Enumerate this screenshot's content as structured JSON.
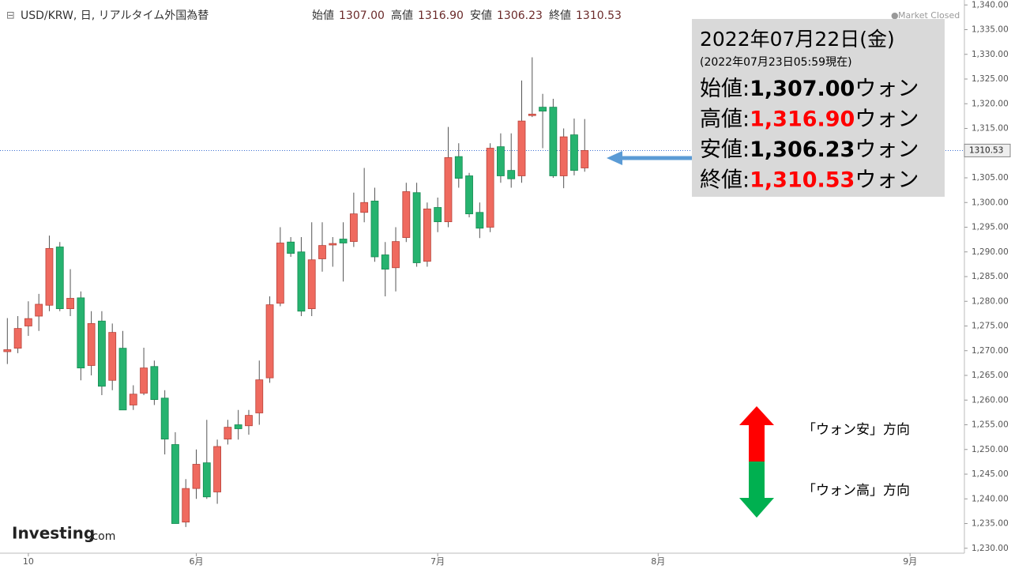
{
  "chart_data": {
    "type": "candlestick",
    "header": {
      "title": "USD/KRW, 日, リアルタイム外国為替",
      "fields": [
        {
          "label": "始値",
          "value": "1307.00"
        },
        {
          "label": "高値",
          "value": "1316.90"
        },
        {
          "label": "安値",
          "value": "1306.23"
        },
        {
          "label": "終値",
          "value": "1310.53"
        }
      ],
      "status": "Market Closed"
    },
    "logo": "Investing",
    "logo_suffix": ".com",
    "open": [
      1269.8,
      1270.5,
      1275,
      1277,
      1279.2,
      1291,
      1278.5,
      1280.7,
      1267,
      1276,
      1264,
      1270.5,
      1259,
      1261.4,
      1266.8,
      1260.4,
      1251,
      1235.3,
      1242.1,
      1247.3,
      1241.4,
      1252.1,
      1255,
      1254.8,
      1257.4,
      1264.5,
      1279.6,
      1292,
      1290,
      1278.5,
      1288.6,
      1291.4,
      1292.6,
      1292.1,
      1298,
      1300.3,
      1289.4,
      1286.8,
      1292.9,
      1302,
      1288.1,
      1299,
      1296.1,
      1309.3,
      1305.4,
      1298,
      1295,
      1311.3,
      1306.5,
      1305.4,
      1317.6,
      1319.3,
      1319.3,
      1305.4,
      1313.7,
      1307
    ],
    "high": [
      1276.6,
      1277,
      1280,
      1281.5,
      1293.3,
      1292,
      1286.5,
      1282,
      1278,
      1278,
      1275.5,
      1274,
      1263,
      1270.6,
      1268,
      1262,
      1253.5,
      1244,
      1250,
      1256,
      1252,
      1256,
      1258,
      1258,
      1268,
      1281,
      1295,
      1293,
      1293,
      1296,
      1296,
      1293,
      1296,
      1302,
      1307,
      1303,
      1292,
      1295,
      1304,
      1304,
      1300,
      1301,
      1315.3,
      1312,
      1306,
      1300,
      1312,
      1314,
      1314,
      1324.7,
      1329.4,
      1322,
      1321,
      1315,
      1317,
      1316.9
    ],
    "low": [
      1267.3,
      1269.5,
      1273,
      1274,
      1278,
      1278,
      1277,
      1264,
      1265,
      1261,
      1262,
      1258,
      1258,
      1261,
      1259,
      1249,
      1235,
      1234.3,
      1240,
      1240,
      1239,
      1251,
      1252,
      1253,
      1255,
      1263.5,
      1279,
      1289,
      1277,
      1277,
      1286,
      1287,
      1284,
      1291,
      1296,
      1288,
      1281,
      1282,
      1292,
      1287,
      1287,
      1294,
      1295,
      1303,
      1297,
      1292.8,
      1294,
      1304,
      1303,
      1304,
      1317.3,
      1311,
      1305,
      1302.9,
      1305.5,
      1306.23
    ],
    "close": [
      1270.2,
      1274.5,
      1276.5,
      1279.4,
      1290.7,
      1278.5,
      1280.6,
      1266.5,
      1275.5,
      1262.8,
      1273.7,
      1258,
      1261.2,
      1266.5,
      1260.1,
      1252.1,
      1235,
      1242.1,
      1247,
      1240.4,
      1250.6,
      1254.5,
      1254.2,
      1256.9,
      1264.1,
      1279.3,
      1291.8,
      1289.7,
      1278,
      1288.4,
      1291.3,
      1291.7,
      1291.8,
      1297.7,
      1300,
      1289,
      1286.5,
      1292.1,
      1302.2,
      1287.8,
      1298.7,
      1296.1,
      1309.1,
      1304.9,
      1297.7,
      1294.8,
      1311,
      1305.4,
      1304.8,
      1316.5,
      1317.9,
      1318.5,
      1305.4,
      1313.3,
      1306.5,
      1310.53
    ],
    "up_color": "#ef6a5f",
    "down_color": "#26b36f",
    "xlim": [
      -0.7,
      91.1
    ],
    "xticks": [
      {
        "value": 2,
        "label": "10"
      },
      {
        "value": 18,
        "label": "6月"
      },
      {
        "value": 41,
        "label": "7月"
      },
      {
        "value": 62,
        "label": "8月"
      },
      {
        "value": 86,
        "label": "9月"
      }
    ],
    "ylim": [
      1229,
      1341
    ],
    "yticks": [
      {
        "value": 1230,
        "label": "1,230.00"
      },
      {
        "value": 1235,
        "label": "1,235.00"
      },
      {
        "value": 1240,
        "label": "1,240.00"
      },
      {
        "value": 1245,
        "label": "1,245.00"
      },
      {
        "value": 1250,
        "label": "1,250.00"
      },
      {
        "value": 1255,
        "label": "1,255.00"
      },
      {
        "value": 1260,
        "label": "1,260.00"
      },
      {
        "value": 1265,
        "label": "1,265.00"
      },
      {
        "value": 1270,
        "label": "1,270.00"
      },
      {
        "value": 1275,
        "label": "1,275.00"
      },
      {
        "value": 1280,
        "label": "1,280.00"
      },
      {
        "value": 1285,
        "label": "1,285.00"
      },
      {
        "value": 1290,
        "label": "1,290.00"
      },
      {
        "value": 1295,
        "label": "1,295.00"
      },
      {
        "value": 1300,
        "label": "1,300.00"
      },
      {
        "value": 1305,
        "label": "1,305.00"
      },
      {
        "value": 1310,
        "label": "1,310.00"
      },
      {
        "value": 1315,
        "label": "1,315.00"
      },
      {
        "value": 1320,
        "label": "1,320.00"
      },
      {
        "value": 1325,
        "label": "1,325.00"
      },
      {
        "value": 1330,
        "label": "1,330.00"
      },
      {
        "value": 1335,
        "label": "1,335.00"
      },
      {
        "value": 1340,
        "label": "1,340.00"
      }
    ],
    "current_price": {
      "value": 1310.53,
      "label": "1310.53",
      "color": "#3d6fd1"
    },
    "info_box": {
      "date": "2022年07月22日(金)",
      "as_of": "(2022年07月23日05:59現在)",
      "rows": [
        {
          "label": "始値:",
          "value": "1,307.00",
          "unit": "ウォン",
          "value_color": "#000000"
        },
        {
          "label": "高値:",
          "value": "1,316.90",
          "unit": "ウォン",
          "value_color": "#ff0000"
        },
        {
          "label": "安値:",
          "value": "1,306.23",
          "unit": "ウォン",
          "value_color": "#000000"
        },
        {
          "label": "終値:",
          "value": "1,310.53",
          "unit": "ウォン",
          "value_color": "#ff0000"
        }
      ]
    },
    "legend": {
      "up": "「ウォン安」方向",
      "down": "「ウォン高」方向"
    }
  }
}
